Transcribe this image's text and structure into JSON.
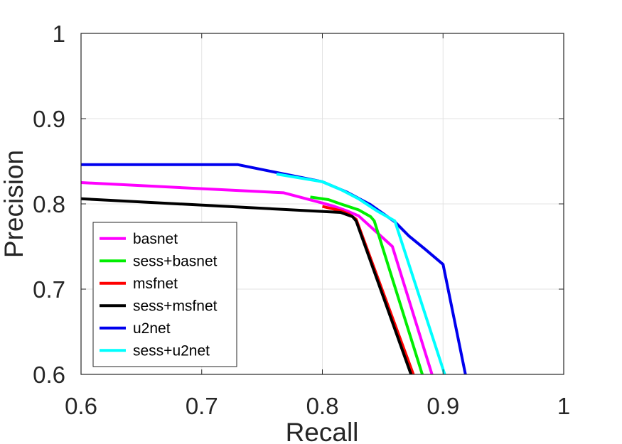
{
  "chart_data": {
    "type": "line",
    "title": "",
    "xlabel": "Recall",
    "ylabel": "Precision",
    "xlim": [
      0.6,
      1.0
    ],
    "ylim": [
      0.6,
      1.0
    ],
    "x_ticks": [
      "0.6",
      "0.7",
      "0.8",
      "0.9",
      "1"
    ],
    "y_ticks": [
      "0.6",
      "0.7",
      "0.8",
      "0.9",
      "1"
    ],
    "grid": true,
    "legend_position": "bottom-left",
    "series": [
      {
        "name": "basnet",
        "color": "#ff00ff",
        "x": [
          0.6,
          0.768,
          0.8,
          0.81,
          0.82,
          0.83,
          0.858,
          0.893
        ],
        "y": [
          0.825,
          0.813,
          0.801,
          0.797,
          0.792,
          0.786,
          0.75,
          0.59
        ]
      },
      {
        "name": "sess+basnet",
        "color": "#00ee00",
        "x": [
          0.79,
          0.805,
          0.815,
          0.83,
          0.84,
          0.843,
          0.885
        ],
        "y": [
          0.808,
          0.805,
          0.8,
          0.793,
          0.785,
          0.78,
          0.59
        ]
      },
      {
        "name": "msfnet",
        "color": "#ff0000",
        "x": [
          0.8,
          0.815,
          0.822,
          0.828,
          0.878
        ],
        "y": [
          0.797,
          0.792,
          0.788,
          0.782,
          0.59
        ]
      },
      {
        "name": "sess+msfnet",
        "color": "#000000",
        "x": [
          0.6,
          0.815,
          0.825,
          0.828,
          0.876
        ],
        "y": [
          0.806,
          0.79,
          0.785,
          0.78,
          0.59
        ]
      },
      {
        "name": "u2net",
        "color": "#0000ee",
        "x": [
          0.6,
          0.73,
          0.8,
          0.82,
          0.84,
          0.86,
          0.872,
          0.885,
          0.9,
          0.92
        ],
        "y": [
          0.846,
          0.846,
          0.826,
          0.814,
          0.799,
          0.779,
          0.762,
          0.747,
          0.729,
          0.59
        ]
      },
      {
        "name": "sess+u2net",
        "color": "#00ffff",
        "x": [
          0.762,
          0.8,
          0.815,
          0.83,
          0.845,
          0.86,
          0.9037
        ],
        "y": [
          0.835,
          0.826,
          0.817,
          0.806,
          0.792,
          0.78,
          0.59
        ]
      }
    ]
  }
}
